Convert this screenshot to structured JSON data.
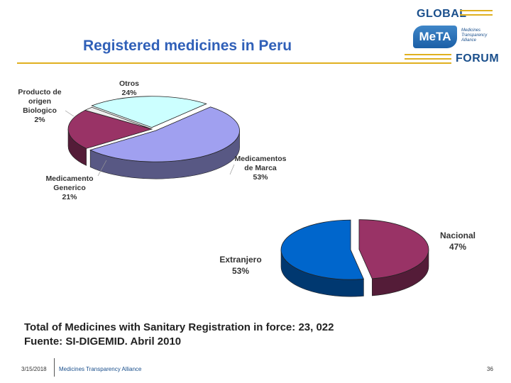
{
  "slide": {
    "title": "Registered medicines in Peru"
  },
  "logo": {
    "global": "GLOBAL",
    "badge": "MeTA",
    "tagline": "Medicines Transparency Alliance",
    "forum": "FORUM"
  },
  "chart_data": [
    {
      "type": "pie",
      "slices": [
        {
          "label": "Medicamentos de Marca",
          "value": 53,
          "color": "#a0a0f0"
        },
        {
          "label": "Medicamento Generico",
          "value": 21,
          "color": "#993366"
        },
        {
          "label": "Producto de origen Biologico",
          "value": 2,
          "color": "#eeeeee"
        },
        {
          "label": "Otros",
          "value": 24,
          "color": "#ccffff"
        }
      ],
      "data_labels": {
        "marca": "Medicamentos\nde Marca\n53%",
        "generico": "Medicamento\nGenerico\n21%",
        "biologico": "Producto de\norigen\nBiologico\n2%",
        "otros": "Otros\n24%"
      }
    },
    {
      "type": "pie",
      "slices": [
        {
          "label": "Nacional",
          "value": 47,
          "color": "#993366"
        },
        {
          "label": "Extranjero",
          "value": 53,
          "color": "#0066cc"
        }
      ],
      "data_labels": {
        "nacional": "Nacional\n47%",
        "extranjero": "Extranjero\n53%"
      }
    }
  ],
  "footnote": {
    "line1": "Total of Medicines with Sanitary Registration in force: 23, 022",
    "line2": "Fuente: SI-DIGEMID. Abril 2010"
  },
  "footer": {
    "date": "3/15/2018",
    "org": "Medicines Transparency Alliance",
    "page": "36"
  }
}
